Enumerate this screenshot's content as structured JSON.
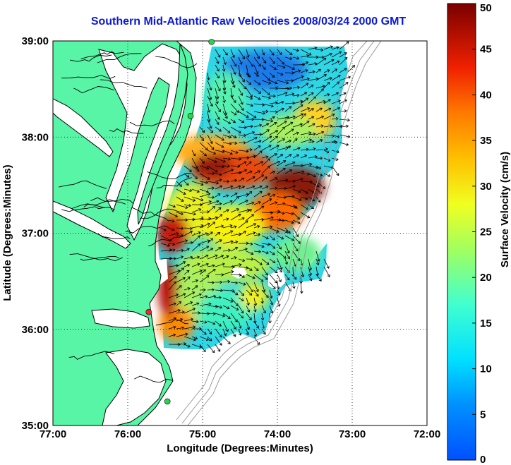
{
  "title": "Southern Mid-Atlantic Raw Velocities 2008/03/24 2000 GMT",
  "axes": {
    "xlabel": "Longitude (Degrees:Minutes)",
    "ylabel": "Latitude (Degrees:Minutes)",
    "lon_ticks": [
      {
        "value": -77,
        "label": "77:00"
      },
      {
        "value": -76,
        "label": "76:00"
      },
      {
        "value": -75,
        "label": "75:00"
      },
      {
        "value": -74,
        "label": "74:00"
      },
      {
        "value": -73,
        "label": "73:00"
      },
      {
        "value": -72,
        "label": "72:00"
      }
    ],
    "lat_ticks": [
      {
        "value": 39,
        "label": "39:00"
      },
      {
        "value": 38,
        "label": "38:00"
      },
      {
        "value": 37,
        "label": "37:00"
      },
      {
        "value": 36,
        "label": "36:00"
      },
      {
        "value": 35,
        "label": "35:00"
      }
    ],
    "lon_range": [
      -77,
      -72
    ],
    "lat_range": [
      35,
      39
    ],
    "grid": "dotted"
  },
  "colorbar": {
    "label": "Surface Velocity (cm/s)",
    "min": 0,
    "max": 50,
    "ticks": [
      {
        "value": 50,
        "label": "50"
      },
      {
        "value": 45,
        "label": "45"
      },
      {
        "value": 40,
        "label": "40"
      },
      {
        "value": 35,
        "label": "35"
      },
      {
        "value": 30,
        "label": "30"
      },
      {
        "value": 25,
        "label": "25"
      },
      {
        "value": 20,
        "label": "20"
      },
      {
        "value": 15,
        "label": "15"
      },
      {
        "value": 10,
        "label": "10"
      },
      {
        "value": 5,
        "label": "5"
      },
      {
        "value": 0,
        "label": "0"
      }
    ],
    "colormap": "jet"
  },
  "colors": {
    "land": "#57f5a5",
    "coast": "#000000",
    "bathymetry": "#9a9a9a",
    "station_north": "#22d84a",
    "station_south": "#f02828",
    "title": "#0a18d8"
  },
  "stations": [
    {
      "lon": -74.88,
      "lat": 38.99,
      "color": "green"
    },
    {
      "lon": -75.16,
      "lat": 38.22,
      "color": "green"
    },
    {
      "lon": -75.72,
      "lat": 36.18,
      "color": "red"
    },
    {
      "lon": -75.47,
      "lat": 35.25,
      "color": "green"
    }
  ]
}
